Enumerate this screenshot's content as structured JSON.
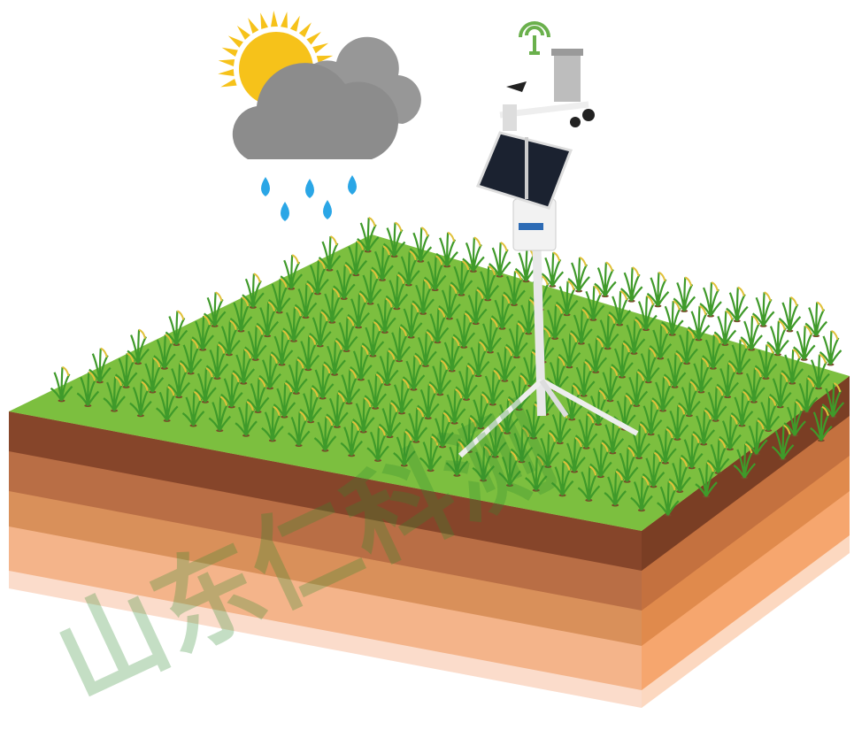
{
  "watermark": "山东仁科测"
}
